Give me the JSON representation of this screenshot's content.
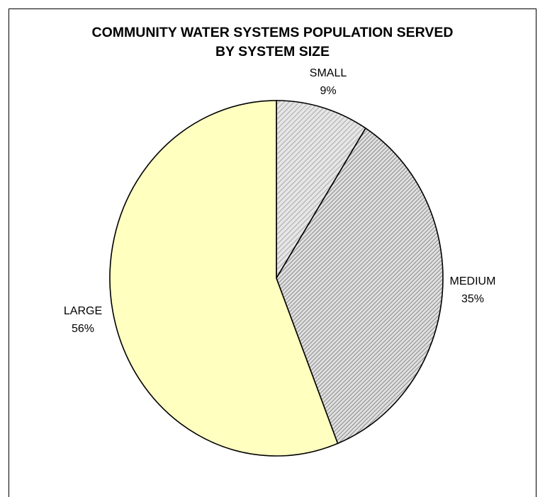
{
  "chart_data": {
    "type": "pie",
    "title": "COMMUNITY WATER SYSTEMS POPULATION SERVED BY SYSTEM SIZE",
    "title_lines": [
      "COMMUNITY WATER SYSTEMS POPULATION SERVED",
      "BY SYSTEM SIZE"
    ],
    "slices": [
      {
        "label": "SMALL",
        "value": 9,
        "value_label": "9%",
        "fill": "#d8d8d8",
        "pattern": "diagonal-hatch-light"
      },
      {
        "label": "MEDIUM",
        "value": 35,
        "value_label": "35%",
        "fill": "#cfcfcf",
        "pattern": "diagonal-hatch-dense"
      },
      {
        "label": "LARGE",
        "value": 56,
        "value_label": "56%",
        "fill": "#ffffc0",
        "pattern": "solid"
      }
    ],
    "start_angle": "12 o'clock",
    "direction": "clockwise",
    "legend": "none",
    "label_position": "outside"
  }
}
